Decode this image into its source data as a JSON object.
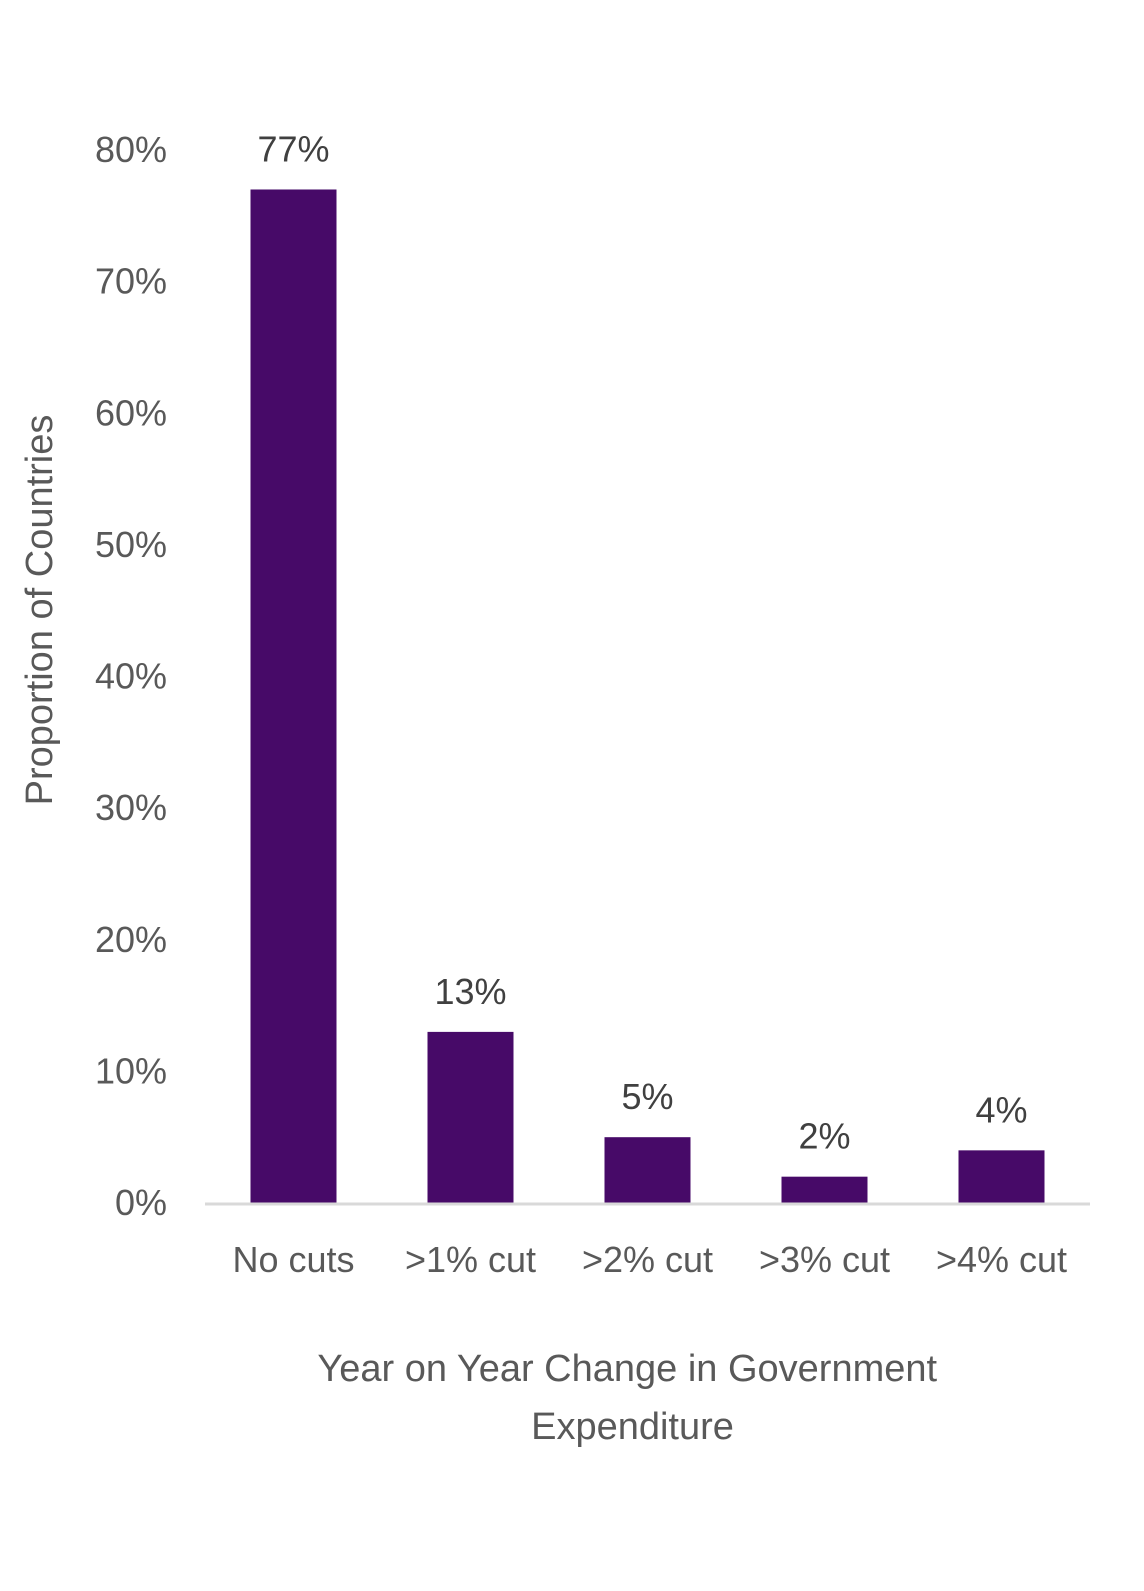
{
  "chart_data": {
    "type": "bar",
    "categories": [
      "No cuts",
      ">1% cut",
      ">2% cut",
      ">3% cut",
      ">4% cut"
    ],
    "values": [
      77,
      13,
      5,
      2,
      4
    ],
    "data_labels": [
      "77%",
      "13%",
      "5%",
      "2%",
      "4%"
    ],
    "yticks": [
      0,
      10,
      20,
      30,
      40,
      50,
      60,
      70,
      80
    ],
    "ytick_labels": [
      "0%",
      "10%",
      "20%",
      "30%",
      "40%",
      "50%",
      "60%",
      "70%",
      "80%"
    ],
    "ylim": [
      0,
      80
    ],
    "title": "",
    "xlabel": "Year on Year Change in Government Expenditure",
    "xlabel_lines": [
      "Year on Year Change in Government",
      "Expenditure"
    ],
    "ylabel": "Proportion of Countries",
    "grid": false,
    "legend": "none",
    "colors": {
      "bar": "#470A68",
      "axis_line": "#D9D9D9"
    }
  }
}
